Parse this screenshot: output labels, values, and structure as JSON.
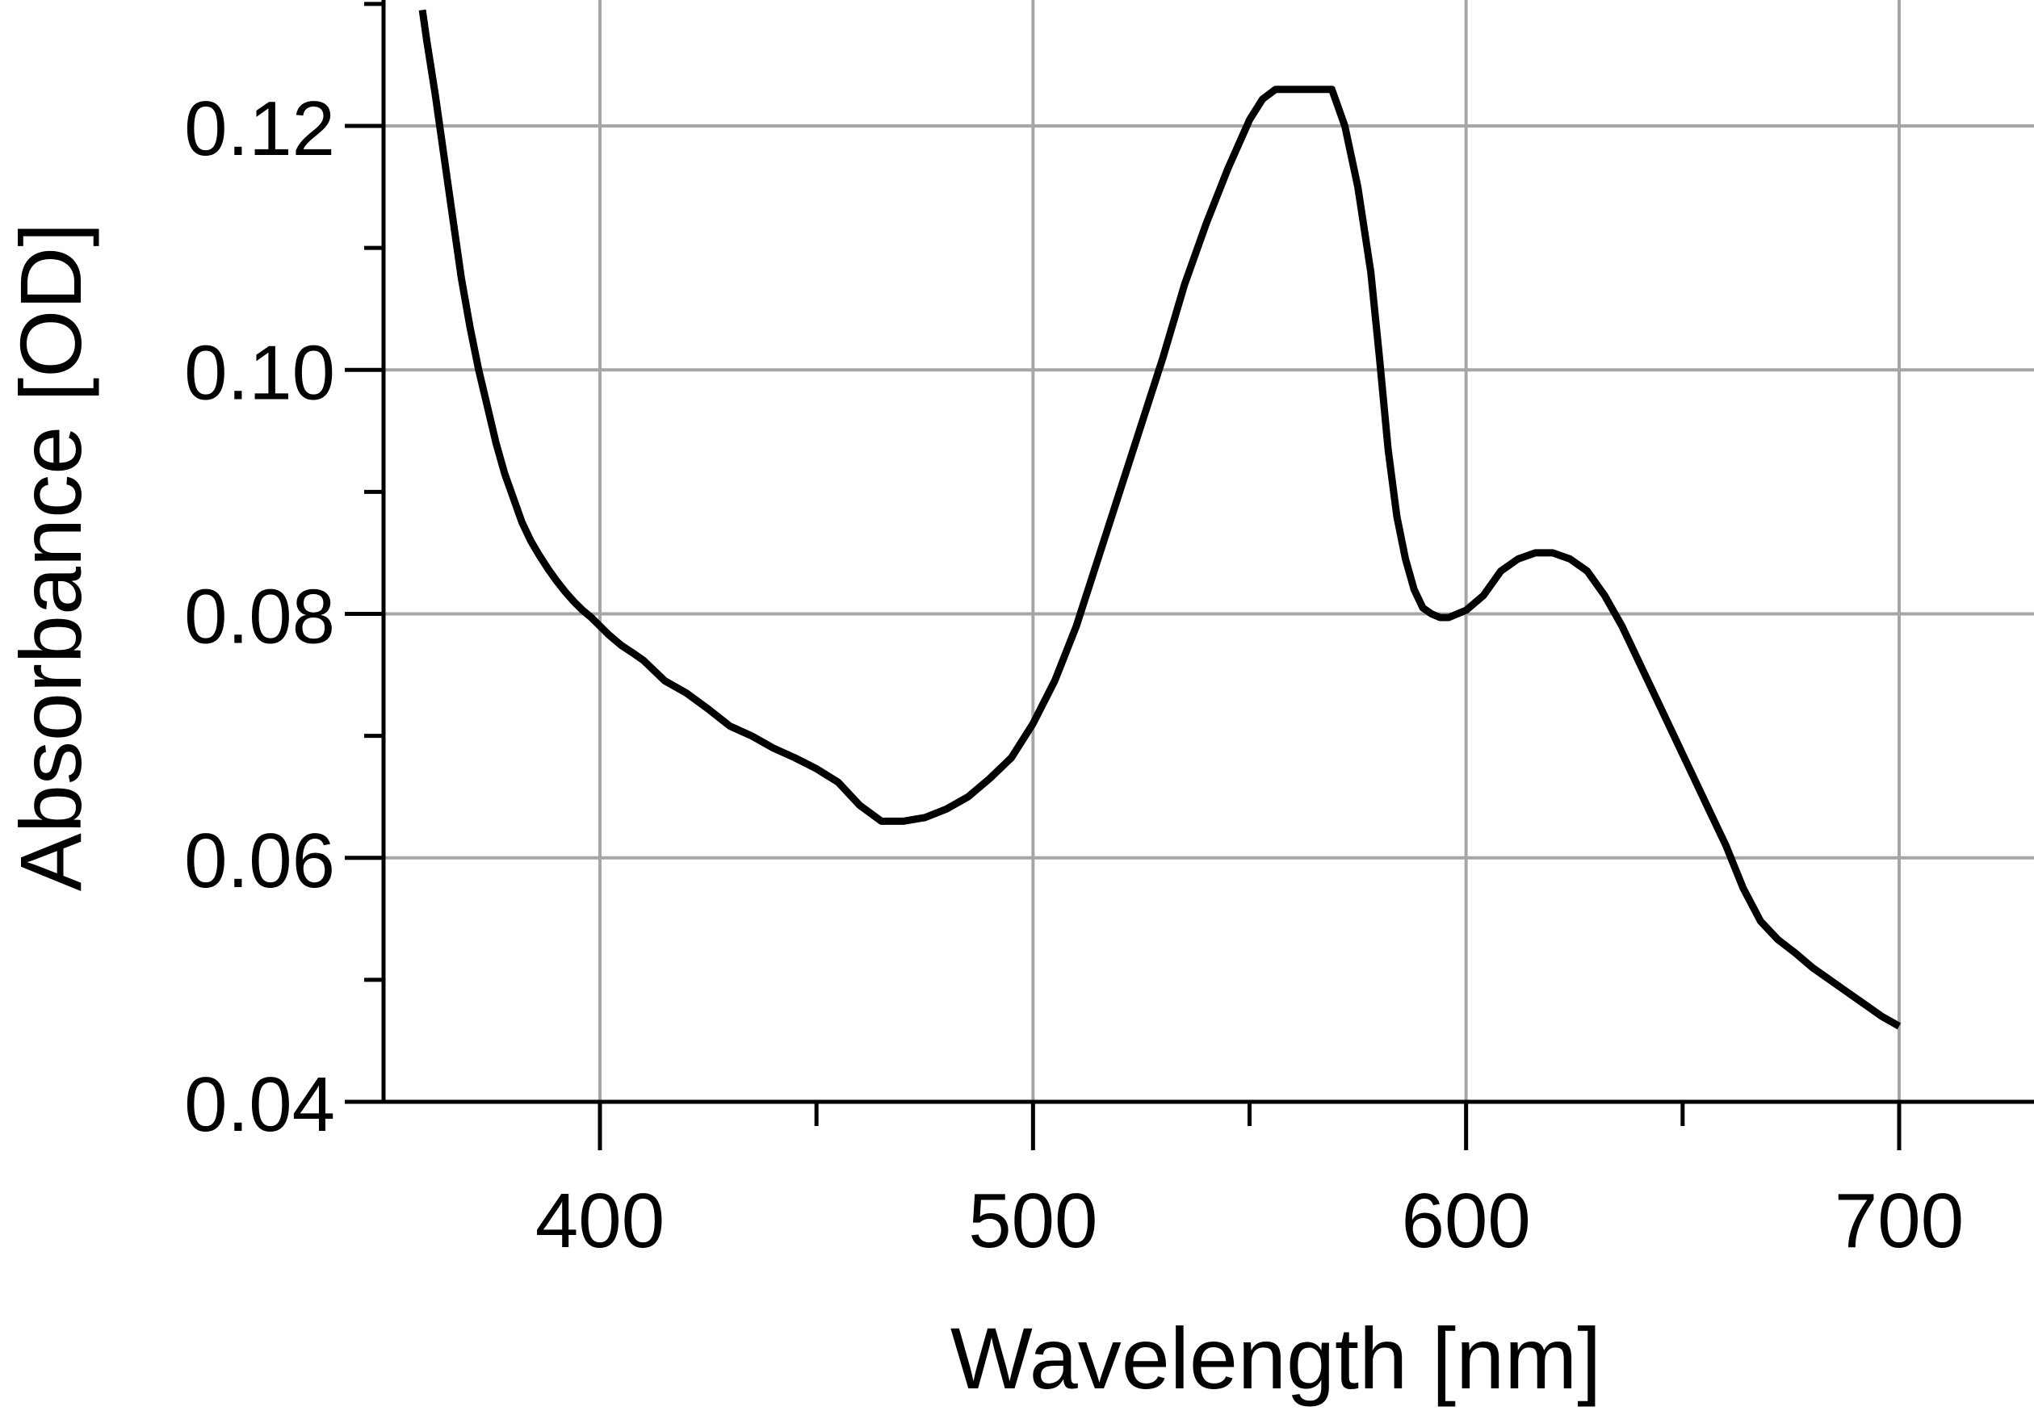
{
  "chart_data": {
    "type": "line",
    "title": "",
    "xlabel": "Wavelength [nm]",
    "ylabel": "Absorbance [OD]",
    "xlim": [
      350,
      730
    ],
    "ylim": [
      0.04,
      0.13
    ],
    "xticks": [
      400,
      500,
      600,
      700
    ],
    "xtick_labels": [
      "400",
      "500",
      "600",
      "700"
    ],
    "yticks": [
      0.04,
      0.06,
      0.08,
      0.1,
      0.12
    ],
    "ytick_labels": [
      "0.04",
      "0.06",
      "0.08",
      "0.10",
      "0.12"
    ],
    "grid": true,
    "legend": "none",
    "colors": {
      "line": "#000000",
      "grid": "#a6a6a6",
      "axis": "#000000"
    },
    "series": [
      {
        "x": [
          359,
          360,
          362,
          364,
          366,
          368,
          370,
          372,
          374,
          376,
          378,
          380,
          382,
          384,
          386,
          388,
          390,
          392,
          394,
          396,
          398,
          400,
          402,
          405,
          408,
          410,
          415,
          420,
          425,
          430,
          435,
          440,
          445,
          450,
          455,
          460,
          465,
          470,
          475,
          480,
          485,
          490,
          495,
          500,
          505,
          510,
          515,
          520,
          525,
          530,
          535,
          540,
          545,
          550,
          553,
          556,
          560,
          565,
          569,
          572,
          575,
          578,
          580,
          582,
          584,
          586,
          588,
          590,
          592,
          594,
          596,
          598,
          600,
          604,
          608,
          612,
          616,
          620,
          624,
          628,
          632,
          636,
          640,
          644,
          648,
          652,
          656,
          660,
          664,
          668,
          672,
          676,
          680,
          684,
          688,
          692,
          696,
          700
        ],
        "values": [
          0.1295,
          0.127,
          0.1225,
          0.1175,
          0.1125,
          0.1075,
          0.1035,
          0.1,
          0.097,
          0.094,
          0.0915,
          0.0895,
          0.0875,
          0.086,
          0.0848,
          0.0837,
          0.0827,
          0.0818,
          0.081,
          0.0803,
          0.0797,
          0.079,
          0.0783,
          0.0774,
          0.0767,
          0.0762,
          0.0745,
          0.0735,
          0.0722,
          0.0708,
          0.07,
          0.069,
          0.0682,
          0.0673,
          0.0662,
          0.0643,
          0.063,
          0.063,
          0.0633,
          0.064,
          0.065,
          0.0665,
          0.0682,
          0.071,
          0.0745,
          0.079,
          0.0845,
          0.09,
          0.0955,
          0.101,
          0.107,
          0.112,
          0.1165,
          0.1205,
          0.1222,
          0.123,
          0.123,
          0.123,
          0.123,
          0.12,
          0.115,
          0.108,
          0.101,
          0.0935,
          0.088,
          0.0845,
          0.082,
          0.0805,
          0.08,
          0.0797,
          0.0797,
          0.08,
          0.0803,
          0.0815,
          0.0835,
          0.0845,
          0.085,
          0.085,
          0.0845,
          0.0835,
          0.0815,
          0.079,
          0.076,
          0.073,
          0.07,
          0.067,
          0.064,
          0.061,
          0.0575,
          0.0548,
          0.0533,
          0.0522,
          0.051,
          0.05,
          0.049,
          0.048,
          0.047,
          0.0462
        ]
      }
    ]
  }
}
